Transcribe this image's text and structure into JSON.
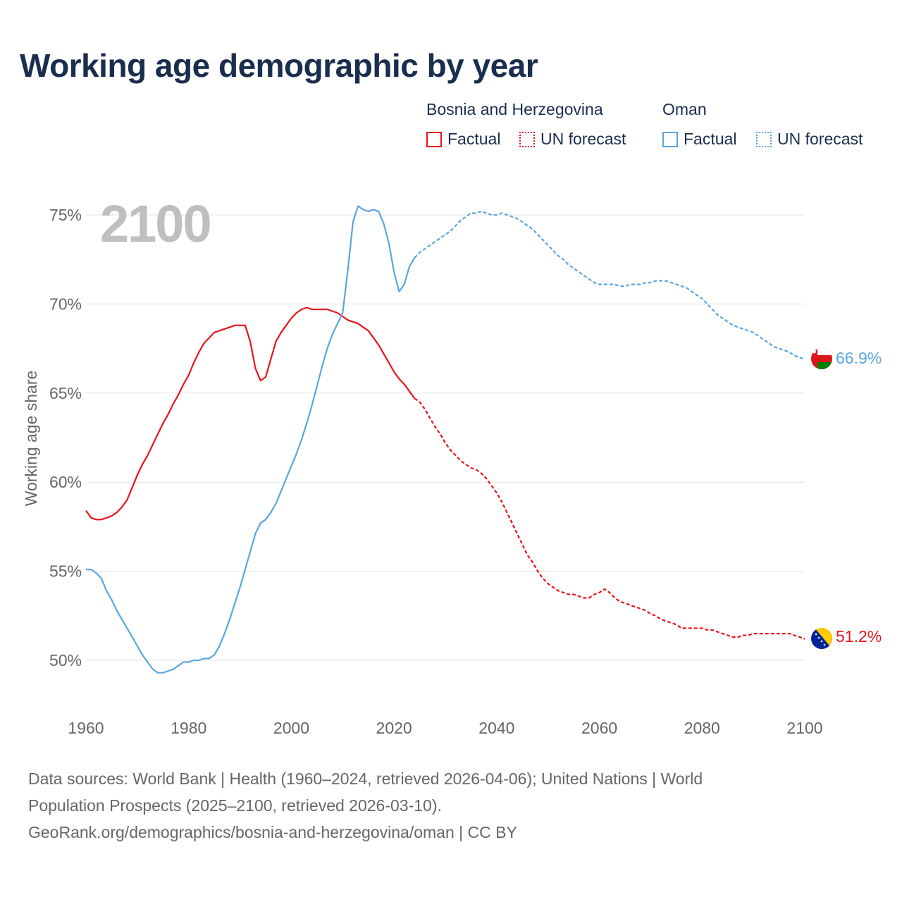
{
  "title": "Working age demographic by year",
  "legend": {
    "groups": [
      {
        "country": "Bosnia and Herzegovina",
        "color": "#e8141a",
        "factual_label": "Factual",
        "forecast_label": "UN forecast"
      },
      {
        "country": "Oman",
        "color": "#5aa6e0",
        "factual_label": "Factual",
        "forecast_label": "UN forecast"
      }
    ]
  },
  "chart_data": {
    "type": "line",
    "title": "Working age demographic by year",
    "xlabel": "",
    "ylabel": "Working age share",
    "xlim": [
      1960,
      2100
    ],
    "ylim": [
      47.5,
      77
    ],
    "x_ticks": [
      1960,
      1980,
      2000,
      2020,
      2040,
      2060,
      2080,
      2100
    ],
    "y_ticks": [
      50,
      55,
      60,
      65,
      70,
      75
    ],
    "y_tick_suffix": "%",
    "year_overlay": "2100",
    "factual_end": 2024,
    "series": [
      {
        "name": "Bosnia and Herzegovina",
        "color": "#e8141a",
        "end_label": "51.2%",
        "flag": "bosnia-flag",
        "points": [
          [
            1960,
            58.4
          ],
          [
            1961,
            58.0
          ],
          [
            1962,
            57.9
          ],
          [
            1963,
            57.9
          ],
          [
            1964,
            58.0
          ],
          [
            1965,
            58.1
          ],
          [
            1966,
            58.3
          ],
          [
            1967,
            58.6
          ],
          [
            1968,
            59.0
          ],
          [
            1969,
            59.7
          ],
          [
            1970,
            60.4
          ],
          [
            1971,
            61.0
          ],
          [
            1972,
            61.5
          ],
          [
            1973,
            62.1
          ],
          [
            1974,
            62.7
          ],
          [
            1975,
            63.3
          ],
          [
            1976,
            63.8
          ],
          [
            1977,
            64.4
          ],
          [
            1978,
            64.9
          ],
          [
            1979,
            65.5
          ],
          [
            1980,
            66.0
          ],
          [
            1981,
            66.7
          ],
          [
            1982,
            67.3
          ],
          [
            1983,
            67.8
          ],
          [
            1984,
            68.1
          ],
          [
            1985,
            68.4
          ],
          [
            1986,
            68.5
          ],
          [
            1987,
            68.6
          ],
          [
            1988,
            68.7
          ],
          [
            1989,
            68.8
          ],
          [
            1990,
            68.8
          ],
          [
            1991,
            68.8
          ],
          [
            1992,
            67.9
          ],
          [
            1993,
            66.4
          ],
          [
            1994,
            65.7
          ],
          [
            1995,
            65.9
          ],
          [
            1996,
            66.9
          ],
          [
            1997,
            67.9
          ],
          [
            1998,
            68.4
          ],
          [
            1999,
            68.8
          ],
          [
            2000,
            69.2
          ],
          [
            2001,
            69.5
          ],
          [
            2002,
            69.7
          ],
          [
            2003,
            69.8
          ],
          [
            2004,
            69.7
          ],
          [
            2005,
            69.7
          ],
          [
            2006,
            69.7
          ],
          [
            2007,
            69.7
          ],
          [
            2008,
            69.6
          ],
          [
            2009,
            69.5
          ],
          [
            2010,
            69.3
          ],
          [
            2011,
            69.1
          ],
          [
            2012,
            69.0
          ],
          [
            2013,
            68.9
          ],
          [
            2014,
            68.7
          ],
          [
            2015,
            68.5
          ],
          [
            2016,
            68.1
          ],
          [
            2017,
            67.7
          ],
          [
            2018,
            67.2
          ],
          [
            2019,
            66.7
          ],
          [
            2020,
            66.2
          ],
          [
            2021,
            65.8
          ],
          [
            2022,
            65.5
          ],
          [
            2023,
            65.1
          ],
          [
            2024,
            64.7
          ],
          [
            2025,
            64.5
          ],
          [
            2026,
            64.1
          ],
          [
            2027,
            63.6
          ],
          [
            2028,
            63.1
          ],
          [
            2029,
            62.7
          ],
          [
            2030,
            62.2
          ],
          [
            2031,
            61.8
          ],
          [
            2032,
            61.5
          ],
          [
            2033,
            61.2
          ],
          [
            2034,
            61.0
          ],
          [
            2035,
            60.8
          ],
          [
            2036,
            60.7
          ],
          [
            2037,
            60.5
          ],
          [
            2038,
            60.2
          ],
          [
            2039,
            59.8
          ],
          [
            2040,
            59.4
          ],
          [
            2041,
            58.9
          ],
          [
            2042,
            58.3
          ],
          [
            2043,
            57.7
          ],
          [
            2044,
            57.1
          ],
          [
            2045,
            56.5
          ],
          [
            2046,
            55.9
          ],
          [
            2047,
            55.5
          ],
          [
            2048,
            55.0
          ],
          [
            2049,
            54.6
          ],
          [
            2050,
            54.3
          ],
          [
            2051,
            54.1
          ],
          [
            2052,
            53.9
          ],
          [
            2053,
            53.8
          ],
          [
            2054,
            53.7
          ],
          [
            2055,
            53.7
          ],
          [
            2056,
            53.6
          ],
          [
            2057,
            53.5
          ],
          [
            2058,
            53.5
          ],
          [
            2059,
            53.7
          ],
          [
            2060,
            53.8
          ],
          [
            2061,
            54.0
          ],
          [
            2062,
            53.8
          ],
          [
            2063,
            53.5
          ],
          [
            2064,
            53.3
          ],
          [
            2065,
            53.2
          ],
          [
            2066,
            53.1
          ],
          [
            2067,
            53.0
          ],
          [
            2068,
            52.9
          ],
          [
            2069,
            52.8
          ],
          [
            2070,
            52.6
          ],
          [
            2071,
            52.5
          ],
          [
            2072,
            52.3
          ],
          [
            2073,
            52.2
          ],
          [
            2074,
            52.1
          ],
          [
            2075,
            52.0
          ],
          [
            2076,
            51.8
          ],
          [
            2077,
            51.8
          ],
          [
            2078,
            51.8
          ],
          [
            2079,
            51.8
          ],
          [
            2080,
            51.8
          ],
          [
            2081,
            51.7
          ],
          [
            2082,
            51.7
          ],
          [
            2083,
            51.6
          ],
          [
            2084,
            51.5
          ],
          [
            2085,
            51.4
          ],
          [
            2086,
            51.3
          ],
          [
            2087,
            51.3
          ],
          [
            2088,
            51.4
          ],
          [
            2089,
            51.4
          ],
          [
            2090,
            51.5
          ],
          [
            2091,
            51.5
          ],
          [
            2092,
            51.5
          ],
          [
            2093,
            51.5
          ],
          [
            2094,
            51.5
          ],
          [
            2095,
            51.5
          ],
          [
            2096,
            51.5
          ],
          [
            2097,
            51.5
          ],
          [
            2098,
            51.4
          ],
          [
            2099,
            51.3
          ],
          [
            2100,
            51.2
          ]
        ]
      },
      {
        "name": "Oman",
        "color": "#5aa6e0",
        "end_label": "66.9%",
        "flag": "oman-flag",
        "points": [
          [
            1960,
            55.1
          ],
          [
            1961,
            55.1
          ],
          [
            1962,
            54.9
          ],
          [
            1963,
            54.6
          ],
          [
            1964,
            53.9
          ],
          [
            1965,
            53.4
          ],
          [
            1966,
            52.8
          ],
          [
            1967,
            52.3
          ],
          [
            1968,
            51.8
          ],
          [
            1969,
            51.3
          ],
          [
            1970,
            50.8
          ],
          [
            1971,
            50.3
          ],
          [
            1972,
            49.9
          ],
          [
            1973,
            49.5
          ],
          [
            1974,
            49.3
          ],
          [
            1975,
            49.3
          ],
          [
            1976,
            49.4
          ],
          [
            1977,
            49.5
          ],
          [
            1978,
            49.7
          ],
          [
            1979,
            49.9
          ],
          [
            1980,
            49.9
          ],
          [
            1981,
            50.0
          ],
          [
            1982,
            50.0
          ],
          [
            1983,
            50.1
          ],
          [
            1984,
            50.1
          ],
          [
            1985,
            50.3
          ],
          [
            1986,
            50.8
          ],
          [
            1987,
            51.5
          ],
          [
            1988,
            52.3
          ],
          [
            1989,
            53.2
          ],
          [
            1990,
            54.1
          ],
          [
            1991,
            55.1
          ],
          [
            1992,
            56.1
          ],
          [
            1993,
            57.1
          ],
          [
            1994,
            57.7
          ],
          [
            1995,
            57.9
          ],
          [
            1996,
            58.3
          ],
          [
            1997,
            58.8
          ],
          [
            1998,
            59.5
          ],
          [
            1999,
            60.2
          ],
          [
            2000,
            60.9
          ],
          [
            2001,
            61.6
          ],
          [
            2002,
            62.4
          ],
          [
            2003,
            63.3
          ],
          [
            2004,
            64.3
          ],
          [
            2005,
            65.4
          ],
          [
            2006,
            66.5
          ],
          [
            2007,
            67.5
          ],
          [
            2008,
            68.3
          ],
          [
            2009,
            68.9
          ],
          [
            2010,
            69.5
          ],
          [
            2011,
            71.9
          ],
          [
            2012,
            74.6
          ],
          [
            2013,
            75.5
          ],
          [
            2014,
            75.3
          ],
          [
            2015,
            75.2
          ],
          [
            2016,
            75.3
          ],
          [
            2017,
            75.2
          ],
          [
            2018,
            74.5
          ],
          [
            2019,
            73.4
          ],
          [
            2020,
            71.8
          ],
          [
            2021,
            70.7
          ],
          [
            2022,
            71.1
          ],
          [
            2023,
            72.1
          ],
          [
            2024,
            72.6
          ],
          [
            2025,
            72.9
          ],
          [
            2026,
            73.1
          ],
          [
            2027,
            73.3
          ],
          [
            2028,
            73.5
          ],
          [
            2029,
            73.7
          ],
          [
            2030,
            73.9
          ],
          [
            2031,
            74.1
          ],
          [
            2032,
            74.4
          ],
          [
            2033,
            74.7
          ],
          [
            2034,
            74.9
          ],
          [
            2035,
            75.1
          ],
          [
            2036,
            75.1
          ],
          [
            2037,
            75.2
          ],
          [
            2038,
            75.1
          ],
          [
            2039,
            75.0
          ],
          [
            2040,
            75.0
          ],
          [
            2041,
            75.1
          ],
          [
            2042,
            75.0
          ],
          [
            2043,
            74.9
          ],
          [
            2044,
            74.8
          ],
          [
            2045,
            74.6
          ],
          [
            2046,
            74.4
          ],
          [
            2047,
            74.2
          ],
          [
            2048,
            73.9
          ],
          [
            2049,
            73.6
          ],
          [
            2050,
            73.3
          ],
          [
            2051,
            73.0
          ],
          [
            2052,
            72.7
          ],
          [
            2053,
            72.5
          ],
          [
            2054,
            72.2
          ],
          [
            2055,
            72.0
          ],
          [
            2056,
            71.8
          ],
          [
            2057,
            71.6
          ],
          [
            2058,
            71.4
          ],
          [
            2059,
            71.2
          ],
          [
            2060,
            71.1
          ],
          [
            2061,
            71.1
          ],
          [
            2062,
            71.1
          ],
          [
            2063,
            71.1
          ],
          [
            2064,
            71.0
          ],
          [
            2065,
            71.0
          ],
          [
            2066,
            71.1
          ],
          [
            2067,
            71.1
          ],
          [
            2068,
            71.1
          ],
          [
            2069,
            71.2
          ],
          [
            2070,
            71.2
          ],
          [
            2071,
            71.3
          ],
          [
            2072,
            71.3
          ],
          [
            2073,
            71.3
          ],
          [
            2074,
            71.2
          ],
          [
            2075,
            71.1
          ],
          [
            2076,
            71.0
          ],
          [
            2077,
            70.9
          ],
          [
            2078,
            70.7
          ],
          [
            2079,
            70.5
          ],
          [
            2080,
            70.3
          ],
          [
            2081,
            70.0
          ],
          [
            2082,
            69.7
          ],
          [
            2083,
            69.4
          ],
          [
            2084,
            69.2
          ],
          [
            2085,
            69.0
          ],
          [
            2086,
            68.8
          ],
          [
            2087,
            68.7
          ],
          [
            2088,
            68.6
          ],
          [
            2089,
            68.5
          ],
          [
            2090,
            68.4
          ],
          [
            2091,
            68.2
          ],
          [
            2092,
            68.0
          ],
          [
            2093,
            67.8
          ],
          [
            2094,
            67.6
          ],
          [
            2095,
            67.5
          ],
          [
            2096,
            67.4
          ],
          [
            2097,
            67.3
          ],
          [
            2098,
            67.1
          ],
          [
            2099,
            67.0
          ],
          [
            2100,
            66.9
          ]
        ]
      }
    ]
  },
  "footer": {
    "line1": "Data sources: World Bank | Health (1960–2024, retrieved 2026-04-06); United Nations | World",
    "line2": "Population Prospects (2025–2100, retrieved 2026-03-10).",
    "line3": "GeoRank.org/demographics/bosnia-and-herzegovina/oman | CC BY"
  }
}
